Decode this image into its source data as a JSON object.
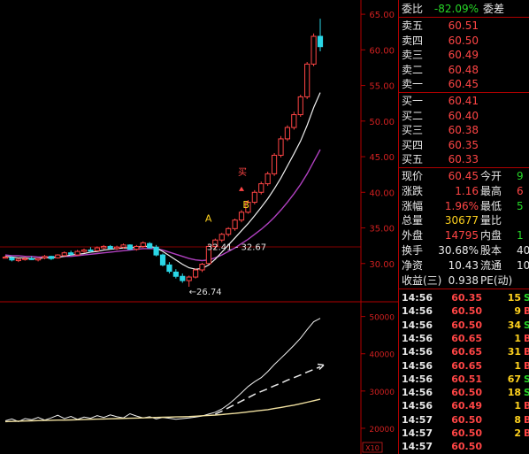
{
  "colors": {
    "up": "#ff4545",
    "down": "#27d627",
    "bg": "#000000",
    "grid": "#b00000",
    "ma1": "#f0f0f0",
    "ma2": "#b040c0",
    "vol_line": "#f0f0f0",
    "vol_ma": "#f0e0a0"
  },
  "chart": {
    "price_axis": [
      "65.00",
      "60.00",
      "55.00",
      "50.00",
      "45.00",
      "40.00",
      "35.00",
      "30.00"
    ],
    "volume_axis": [
      "50000",
      "40000",
      "30000",
      "20000"
    ],
    "volume_axis_unit": "X10",
    "annotations": {
      "high": "64.38",
      "low": "26.74",
      "range": "32.41 - 32.67",
      "point_a": "A",
      "point_b": "B",
      "buy_mark": "买"
    }
  },
  "chart_data": {
    "type": "candlestick",
    "ylim": [
      25,
      67
    ],
    "price_ticks": [
      65,
      60,
      55,
      50,
      45,
      40,
      35,
      30
    ],
    "candles": [
      [
        30.9,
        31.1,
        30.7,
        30.9
      ],
      [
        30.8,
        31.0,
        30.3,
        30.5
      ],
      [
        30.4,
        30.8,
        30.2,
        30.6
      ],
      [
        30.6,
        30.9,
        30.4,
        30.7
      ],
      [
        30.7,
        31.0,
        30.5,
        30.6
      ],
      [
        30.5,
        30.8,
        30.3,
        30.7
      ],
      [
        30.8,
        31.2,
        30.6,
        31.0
      ],
      [
        31.0,
        31.1,
        30.5,
        30.7
      ],
      [
        30.8,
        31.3,
        30.7,
        31.2
      ],
      [
        31.1,
        31.7,
        31.0,
        31.5
      ],
      [
        31.5,
        31.8,
        31.1,
        31.3
      ],
      [
        31.2,
        31.9,
        31.1,
        31.7
      ],
      [
        31.7,
        32.1,
        31.5,
        31.9
      ],
      [
        31.9,
        32.3,
        31.6,
        31.8
      ],
      [
        31.8,
        32.4,
        31.7,
        32.2
      ],
      [
        32.2,
        32.6,
        32.0,
        32.4
      ],
      [
        32.4,
        32.6,
        32.0,
        32.1
      ],
      [
        32.1,
        32.5,
        31.9,
        32.3
      ],
      [
        32.3,
        32.8,
        32.1,
        32.6
      ],
      [
        32.6,
        32.7,
        31.9,
        32.0
      ],
      [
        32.0,
        32.6,
        31.8,
        32.4
      ],
      [
        32.4,
        33.1,
        32.2,
        32.9
      ],
      [
        32.8,
        33.0,
        32.1,
        32.2
      ],
      [
        32.3,
        32.6,
        31.0,
        31.2
      ],
      [
        31.2,
        31.4,
        29.6,
        29.8
      ],
      [
        29.8,
        30.2,
        28.6,
        28.9
      ],
      [
        28.8,
        29.2,
        27.9,
        28.2
      ],
      [
        28.2,
        28.6,
        27.3,
        27.6
      ],
      [
        27.6,
        28.3,
        26.74,
        28.1
      ],
      [
        28.1,
        29.3,
        27.9,
        29.1
      ],
      [
        29.1,
        30.1,
        28.8,
        29.9
      ],
      [
        30.0,
        32.7,
        29.9,
        32.4
      ],
      [
        32.4,
        33.5,
        32.0,
        33.3
      ],
      [
        33.3,
        34.3,
        33.0,
        34.1
      ],
      [
        34.1,
        35.1,
        33.8,
        34.9
      ],
      [
        34.9,
        36.3,
        34.6,
        36.1
      ],
      [
        36.1,
        37.5,
        35.8,
        37.2
      ],
      [
        37.2,
        38.9,
        37.0,
        38.6
      ],
      [
        38.6,
        40.3,
        38.3,
        40.0
      ],
      [
        40.0,
        41.5,
        39.7,
        41.2
      ],
      [
        41.2,
        42.9,
        40.9,
        42.6
      ],
      [
        42.6,
        45.5,
        42.3,
        45.2
      ],
      [
        45.2,
        47.9,
        44.9,
        47.5
      ],
      [
        47.5,
        49.4,
        47.2,
        49.1
      ],
      [
        49.1,
        51.3,
        48.8,
        50.9
      ],
      [
        50.9,
        53.7,
        50.6,
        53.4
      ],
      [
        53.4,
        58.3,
        53.1,
        58.0
      ],
      [
        58.0,
        62.3,
        57.7,
        61.9
      ],
      [
        61.9,
        64.38,
        59.8,
        60.45
      ]
    ],
    "ma_fast": [
      31.0,
      30.9,
      30.8,
      30.8,
      30.7,
      30.7,
      30.8,
      30.8,
      30.9,
      31.0,
      31.2,
      31.3,
      31.4,
      31.6,
      31.7,
      31.9,
      32.0,
      32.1,
      32.2,
      32.2,
      32.3,
      32.4,
      32.4,
      32.2,
      31.7,
      31.1,
      30.5,
      29.9,
      29.4,
      29.2,
      29.3,
      29.8,
      30.6,
      31.6,
      32.6,
      33.6,
      34.6,
      35.6,
      36.7,
      37.9,
      39.1,
      40.5,
      42.0,
      43.7,
      45.4,
      47.2,
      49.4,
      51.9,
      54.0
    ],
    "ma_slow": [
      31.2,
      31.1,
      31.1,
      31.0,
      31.0,
      30.9,
      30.9,
      30.9,
      30.9,
      31.0,
      31.0,
      31.1,
      31.2,
      31.3,
      31.4,
      31.5,
      31.6,
      31.7,
      31.8,
      31.9,
      32.0,
      32.1,
      32.1,
      32.1,
      31.9,
      31.6,
      31.3,
      31.0,
      30.7,
      30.5,
      30.4,
      30.5,
      30.8,
      31.2,
      31.7,
      32.2,
      32.8,
      33.4,
      34.1,
      34.8,
      35.6,
      36.5,
      37.5,
      38.6,
      39.8,
      41.1,
      42.6,
      44.3,
      46.0
    ],
    "volume": {
      "ylim": [
        15000,
        53000
      ],
      "series": [
        {
          "values": [
            22000,
            22500,
            21800,
            22600,
            22300,
            22900,
            22200,
            22800,
            23500,
            22600,
            23200,
            22400,
            23000,
            22700,
            23400,
            22900,
            23600,
            23100,
            22800,
            23900,
            23300,
            22800,
            23100,
            22500,
            22900,
            22700,
            22400,
            22600,
            22800,
            23000,
            23300,
            23800,
            24300,
            25200,
            26400,
            27900,
            29500,
            31200,
            32500,
            33600,
            35200,
            37100,
            38800,
            40500,
            42300,
            44200,
            46500,
            48600,
            49500
          ]
        },
        {
          "values": [
            null,
            null,
            null,
            null,
            null,
            null,
            null,
            null,
            null,
            null,
            null,
            null,
            null,
            null,
            null,
            null,
            null,
            null,
            null,
            null,
            null,
            null,
            null,
            null,
            null,
            null,
            null,
            null,
            null,
            null,
            null,
            null,
            23800,
            24600,
            25500,
            26400,
            27300,
            28200,
            29100,
            29900,
            30600,
            31400,
            32100,
            32900,
            33600,
            34300,
            35100,
            35800,
            36500
          ]
        },
        {
          "values": [
            21800,
            21850,
            21900,
            21950,
            22000,
            22050,
            22100,
            22150,
            22200,
            22200,
            22250,
            22300,
            22350,
            22400,
            22450,
            22500,
            22550,
            22600,
            22650,
            22700,
            22750,
            22800,
            22850,
            22900,
            22950,
            23000,
            23050,
            23100,
            23150,
            23250,
            23350,
            23450,
            23550,
            23700,
            23850,
            24000,
            24200,
            24400,
            24600,
            24800,
            25000,
            25300,
            25600,
            25900,
            26200,
            26600,
            27000,
            27400,
            27800
          ]
        }
      ]
    }
  },
  "quote": {
    "weibi": {
      "label": "委比",
      "value": "-82.09%",
      "extra": "委差"
    },
    "asks": [
      {
        "label": "卖五",
        "price": "60.51"
      },
      {
        "label": "卖四",
        "price": "60.50"
      },
      {
        "label": "卖三",
        "price": "60.49"
      },
      {
        "label": "卖二",
        "price": "60.48"
      },
      {
        "label": "卖一",
        "price": "60.45"
      }
    ],
    "bids": [
      {
        "label": "买一",
        "price": "60.41"
      },
      {
        "label": "买二",
        "price": "60.40"
      },
      {
        "label": "买三",
        "price": "60.38"
      },
      {
        "label": "买四",
        "price": "60.35"
      },
      {
        "label": "买五",
        "price": "60.33"
      }
    ],
    "stats": [
      {
        "l1": "现价",
        "v1": "60.45",
        "c1": "red",
        "l2": "今开",
        "v2": "9",
        "c2": "green"
      },
      {
        "l1": "涨跌",
        "v1": "1.16",
        "c1": "red",
        "l2": "最高",
        "v2": "6",
        "c2": "red"
      },
      {
        "l1": "涨幅",
        "v1": "1.96%",
        "c1": "red",
        "l2": "最低",
        "v2": "5",
        "c2": "green"
      },
      {
        "l1": "总量",
        "v1": "30677",
        "c1": "yellow",
        "l2": "量比",
        "v2": "",
        "c2": "white"
      },
      {
        "l1": "外盘",
        "v1": "14795",
        "c1": "red",
        "l2": "内盘",
        "v2": "1",
        "c2": "green"
      },
      {
        "l1": "换手",
        "v1": "30.68%",
        "c1": "white",
        "l2": "股本",
        "v2": "40",
        "c2": "white"
      },
      {
        "l1": "净资",
        "v1": "10.43",
        "c1": "white",
        "l2": "流通",
        "v2": "10",
        "c2": "white"
      },
      {
        "l1": "收益(三)",
        "v1": "0.938",
        "c1": "white",
        "l2": "PE(动)",
        "v2": "",
        "c2": "white"
      }
    ],
    "ticks": [
      {
        "time": "14:56",
        "price": "60.35",
        "vol": "15",
        "side": "S",
        "pc": "red",
        "sc": "green"
      },
      {
        "time": "14:56",
        "price": "60.50",
        "vol": "9",
        "side": "B",
        "pc": "red",
        "sc": "red"
      },
      {
        "time": "14:56",
        "price": "60.50",
        "vol": "34",
        "side": "S",
        "pc": "red",
        "sc": "green"
      },
      {
        "time": "14:56",
        "price": "60.65",
        "vol": "1",
        "side": "B",
        "pc": "red",
        "sc": "red"
      },
      {
        "time": "14:56",
        "price": "60.65",
        "vol": "31",
        "side": "B",
        "pc": "red",
        "sc": "red"
      },
      {
        "time": "14:56",
        "price": "60.65",
        "vol": "1",
        "side": "B",
        "pc": "red",
        "sc": "red"
      },
      {
        "time": "14:56",
        "price": "60.51",
        "vol": "67",
        "side": "S",
        "pc": "red",
        "sc": "green"
      },
      {
        "time": "14:56",
        "price": "60.50",
        "vol": "18",
        "side": "S",
        "pc": "red",
        "sc": "green"
      },
      {
        "time": "14:56",
        "price": "60.49",
        "vol": "1",
        "side": "B",
        "pc": "red",
        "sc": "red"
      },
      {
        "time": "14:57",
        "price": "60.50",
        "vol": "8",
        "side": "B",
        "pc": "red",
        "sc": "red"
      },
      {
        "time": "14:57",
        "price": "60.50",
        "vol": "2",
        "side": "B",
        "pc": "red",
        "sc": "red"
      },
      {
        "time": "14:57",
        "price": "60.50",
        "vol": "",
        "side": "",
        "pc": "red",
        "sc": "red"
      }
    ]
  }
}
